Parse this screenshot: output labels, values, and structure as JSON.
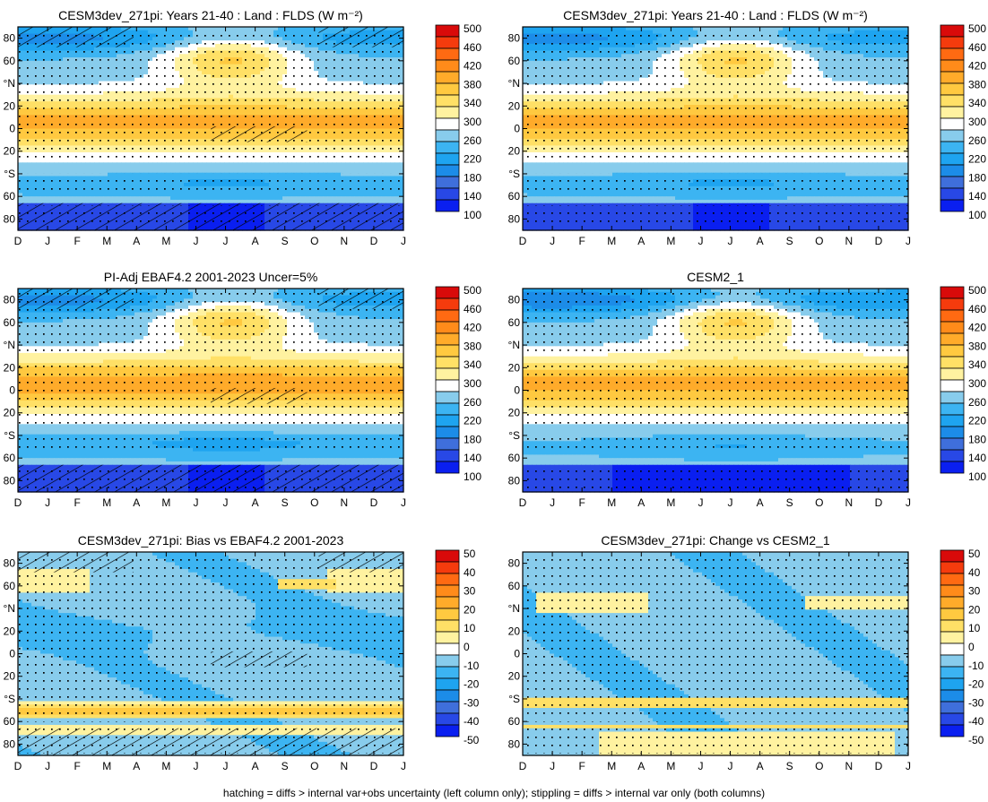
{
  "chart_data": [
    {
      "type": "heatmap",
      "title": "CESM3dev_271pi: Years 21-40 : Land : FLDS (W m⁻²)",
      "field": "clim",
      "hatching": true,
      "stipple": "land",
      "x_ticks": [
        "D",
        "J",
        "F",
        "M",
        "A",
        "M",
        "J",
        "J",
        "A",
        "S",
        "O",
        "N",
        "D",
        "J"
      ],
      "y_ticks": [
        "80",
        "60",
        "°N",
        "20",
        "0",
        "20",
        "°S",
        "60",
        "80"
      ],
      "colorbar": {
        "levels": [
          "500",
          "460",
          "420",
          "380",
          "340",
          "300",
          "260",
          "220",
          "180",
          "140",
          "100"
        ]
      }
    },
    {
      "type": "heatmap",
      "title": "CESM3dev_271pi: Years 21-40 : Land : FLDS (W m⁻²)",
      "field": "clim",
      "hatching": false,
      "stipple": "land",
      "x_ticks": [
        "D",
        "J",
        "F",
        "M",
        "A",
        "M",
        "J",
        "J",
        "A",
        "S",
        "O",
        "N",
        "D",
        "J"
      ],
      "y_ticks": [
        "80",
        "60",
        "°N",
        "20",
        "0",
        "20",
        "°S",
        "60",
        "80"
      ],
      "colorbar": {
        "levels": [
          "500",
          "460",
          "420",
          "380",
          "340",
          "300",
          "260",
          "220",
          "180",
          "140",
          "100"
        ]
      }
    },
    {
      "type": "heatmap",
      "title": "PI-Adj EBAF4.2 2001-2023 Uncer=5%",
      "field": "obs",
      "hatching": true,
      "stipple": "land",
      "x_ticks": [
        "D",
        "J",
        "F",
        "M",
        "A",
        "M",
        "J",
        "J",
        "A",
        "S",
        "O",
        "N",
        "D",
        "J"
      ],
      "y_ticks": [
        "80",
        "60",
        "°N",
        "20",
        "0",
        "20",
        "°S",
        "60",
        "80"
      ],
      "colorbar": {
        "levels": [
          "500",
          "460",
          "420",
          "380",
          "340",
          "300",
          "260",
          "220",
          "180",
          "140",
          "100"
        ]
      }
    },
    {
      "type": "heatmap",
      "title": "CESM2_1",
      "field": "cesm2",
      "hatching": false,
      "stipple": "land",
      "x_ticks": [
        "D",
        "J",
        "F",
        "M",
        "A",
        "M",
        "J",
        "J",
        "A",
        "S",
        "O",
        "N",
        "D",
        "J"
      ],
      "y_ticks": [
        "80",
        "60",
        "°N",
        "20",
        "0",
        "20",
        "°S",
        "60",
        "80"
      ],
      "colorbar": {
        "levels": [
          "500",
          "460",
          "420",
          "380",
          "340",
          "300",
          "260",
          "220",
          "180",
          "140",
          "100"
        ]
      }
    },
    {
      "type": "heatmap",
      "title": "CESM3dev_271pi: Bias vs EBAF4.2 2001-2023",
      "field": "bias",
      "hatching": true,
      "stipple": "wide",
      "x_ticks": [
        "D",
        "J",
        "F",
        "M",
        "A",
        "M",
        "J",
        "J",
        "A",
        "S",
        "O",
        "N",
        "D",
        "J"
      ],
      "y_ticks": [
        "80",
        "60",
        "°N",
        "20",
        "0",
        "20",
        "°S",
        "60",
        "80"
      ],
      "colorbar": {
        "levels": [
          "50",
          "40",
          "30",
          "20",
          "10",
          "0",
          "-10",
          "-20",
          "-30",
          "-40",
          "-50"
        ]
      }
    },
    {
      "type": "heatmap",
      "title": "CESM3dev_271pi: Change vs CESM2_1",
      "field": "change",
      "hatching": false,
      "stipple": "wide",
      "x_ticks": [
        "D",
        "J",
        "F",
        "M",
        "A",
        "M",
        "J",
        "J",
        "A",
        "S",
        "O",
        "N",
        "D",
        "J"
      ],
      "y_ticks": [
        "80",
        "60",
        "°N",
        "20",
        "0",
        "20",
        "°S",
        "60",
        "80"
      ],
      "colorbar": {
        "levels": [
          "50",
          "40",
          "30",
          "20",
          "10",
          "0",
          "-10",
          "-20",
          "-30",
          "-40",
          "-50"
        ]
      }
    }
  ],
  "colors": {
    "palette": [
      "#0a1ff0",
      "#2848e6",
      "#3f6fdb",
      "#1c8ce8",
      "#1ea4f0",
      "#3cb4f2",
      "#88ccec",
      "#ffffff",
      "#fff2a0",
      "#ffe066",
      "#ffc940",
      "#ffab2a",
      "#ff8b1a",
      "#ff6a12",
      "#f53b0d",
      "#d90a0a"
    ]
  },
  "footer": "hatching = diffs > internal var+obs uncertainty (left column only); stippling = diffs > internal var only (both columns)"
}
